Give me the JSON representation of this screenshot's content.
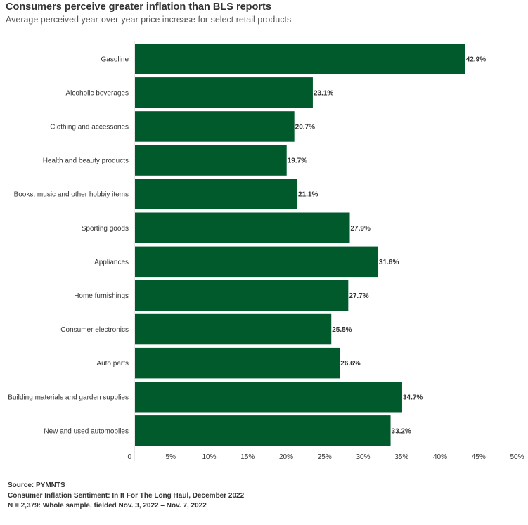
{
  "chart_data": {
    "type": "bar",
    "orientation": "horizontal",
    "title": "Consumers perceive greater inflation than BLS reports",
    "subtitle": "Average perceived year-over-year price increase for select retail products",
    "categories": [
      "Gasoline",
      "Alcoholic beverages",
      "Clothing and accessories",
      "Health and beauty products",
      "Books, music and other hobbiy items",
      "Sporting goods",
      "Appliances",
      "Home furnishings",
      "Consumer electronics",
      "Auto parts",
      "Building materials and garden supplies",
      "New and used automobiles"
    ],
    "values": [
      42.9,
      23.1,
      20.7,
      19.7,
      21.1,
      27.9,
      31.6,
      27.7,
      25.5,
      26.6,
      34.7,
      33.2
    ],
    "data_labels": [
      "42.9%",
      "23.1%",
      "20.7%",
      "19.7%",
      "21.1%",
      "27.9%",
      "31.6%",
      "27.7%",
      "25.5%",
      "26.6%",
      "34.7%",
      "33.2%"
    ],
    "xlabel": "",
    "ylabel": "",
    "xlim": [
      0,
      50
    ],
    "x_ticks": [
      0,
      5,
      10,
      15,
      20,
      25,
      30,
      35,
      40,
      45,
      50
    ],
    "x_tick_labels": [
      "0",
      "5%",
      "10%",
      "15%",
      "20%",
      "25%",
      "30%",
      "35%",
      "40%",
      "45%",
      "50%"
    ],
    "grid": false,
    "legend": "none",
    "bar_color": "#005a2b"
  },
  "footer": {
    "source": "Source: PYMNTS",
    "report": "Consumer Inflation Sentiment: In It For The Long Haul, December 2022",
    "sample": "N = 2,379: Whole sample, fielded Nov. 3, 2022 – Nov. 7, 2022"
  }
}
